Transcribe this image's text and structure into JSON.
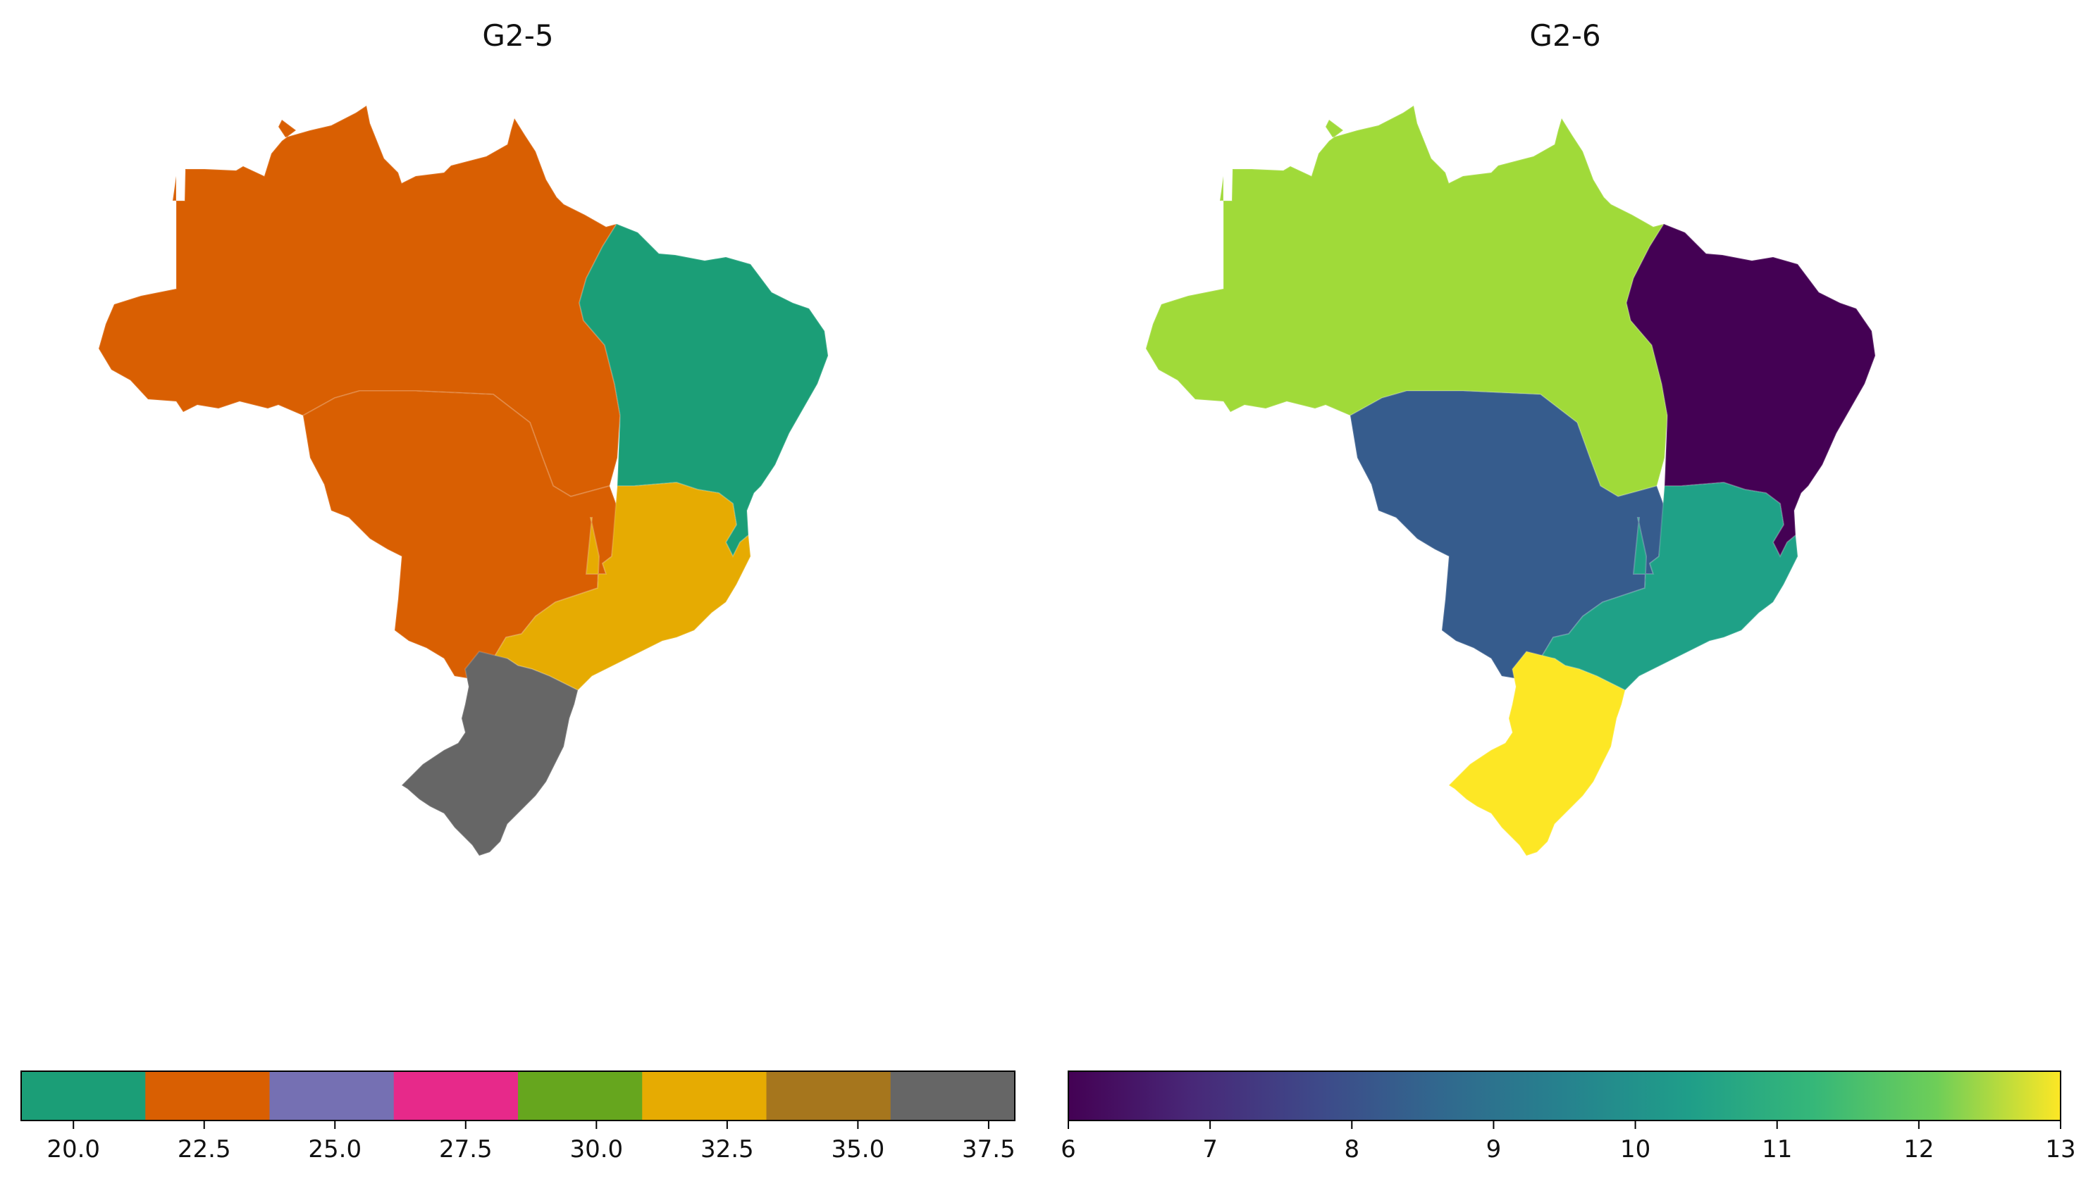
{
  "panels": [
    {
      "title": "G2-5",
      "colorbar": {
        "type": "discrete",
        "range": [
          19.0,
          38.0
        ],
        "bins": [
          "#1b9e77",
          "#d95f02",
          "#7570b3",
          "#e7298a",
          "#66a61e",
          "#e6ab02",
          "#a6761d",
          "#666666"
        ],
        "ticks": [
          "20.0",
          "22.5",
          "25.0",
          "27.5",
          "30.0",
          "32.5",
          "35.0",
          "37.5"
        ],
        "tick_values": [
          20.0,
          22.5,
          25.0,
          27.5,
          30.0,
          32.5,
          35.0,
          37.5
        ]
      },
      "regions": {
        "north": "#d95f02",
        "centerwest": "#d95f02",
        "northeast": "#1b9e77",
        "southeast": "#e6ab02",
        "south": "#666666"
      }
    },
    {
      "title": "G2-6",
      "colorbar": {
        "type": "continuous",
        "colormap": "viridis",
        "range": [
          6,
          13
        ],
        "ticks": [
          "6",
          "7",
          "8",
          "9",
          "10",
          "11",
          "12",
          "13"
        ],
        "tick_values": [
          6,
          7,
          8,
          9,
          10,
          11,
          12,
          13
        ]
      },
      "regions": {
        "north": "#a0da39",
        "centerwest": "#365c8d",
        "northeast": "#440154",
        "southeast": "#1fa187",
        "south": "#fde725"
      }
    }
  ]
}
